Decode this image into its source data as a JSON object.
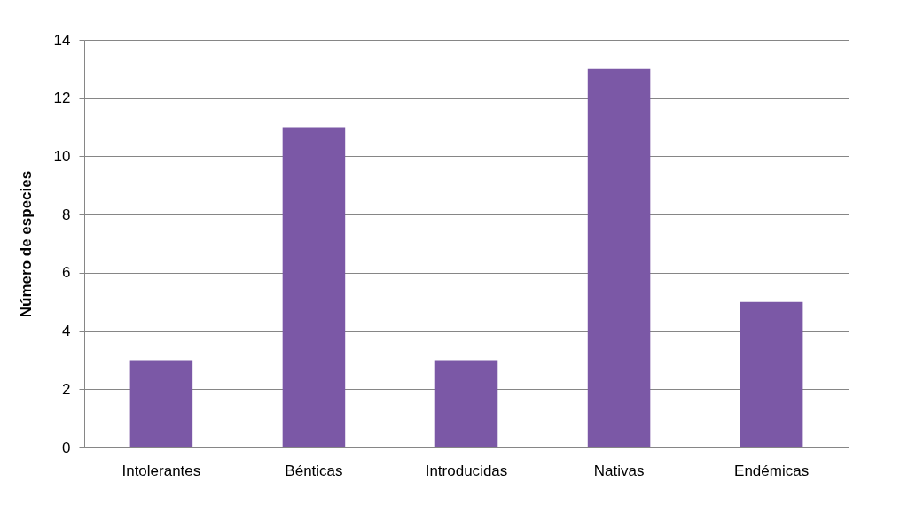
{
  "chart_data": {
    "type": "bar",
    "ylabel": "Número de especies",
    "categories": [
      "Intolerantes",
      "Bénticas",
      "Introducidas",
      "Nativas",
      "Endémicas"
    ],
    "values": [
      3,
      11,
      3,
      13,
      5
    ],
    "color": "#7b58a6",
    "ylim": [
      0,
      14
    ],
    "yticks": [
      0,
      2,
      4,
      6,
      8,
      10,
      12,
      14
    ],
    "grid": "y"
  }
}
